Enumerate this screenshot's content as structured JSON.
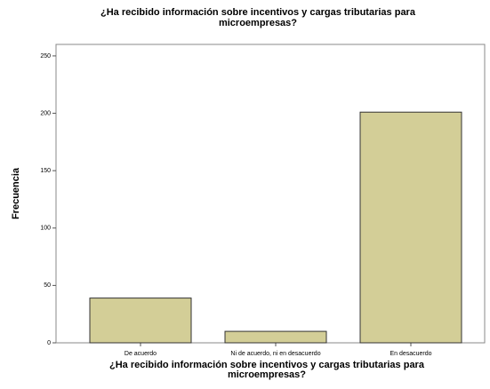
{
  "chart_data": {
    "type": "bar",
    "title": [
      "¿Ha recibido información sobre incentivos y cargas tributarias para",
      "microempresas?"
    ],
    "x_label": [
      "¿Ha recibido información sobre incentivos y cargas tributarias para",
      "microempresas?"
    ],
    "y_label": "Frecuencia",
    "categories": [
      "De acuerdo",
      "Ni de acuerdo, ni en desacuerdo",
      "En desacuerdo"
    ],
    "values": [
      39,
      10,
      201
    ],
    "color": "#d3ce97",
    "ylim": [
      0,
      260
    ],
    "yticks": [
      0,
      50,
      100,
      150,
      200,
      250
    ],
    "grid": false
  }
}
